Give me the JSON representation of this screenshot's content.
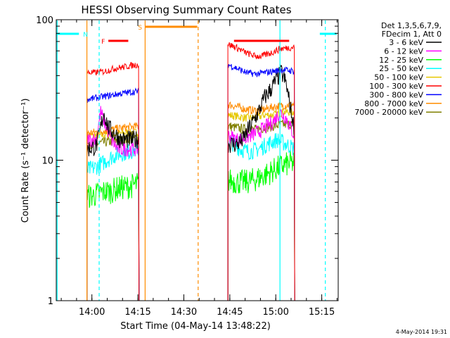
{
  "chart_data": {
    "type": "line",
    "title": "HESSI Observing Summary Count Rates",
    "xlabel": "Start Time (04-May-14 13:48:22)",
    "ylabel": "Count Rate (s⁻¹ detector⁻¹)",
    "x_domain_minutes": [
      0,
      92
    ],
    "x_unit": "minutes after start time",
    "ylim": [
      1,
      100
    ],
    "yscale": "log",
    "x_ticks": [
      {
        "label": "14:00",
        "min": 11.63
      },
      {
        "label": "14:15",
        "min": 26.63
      },
      {
        "label": "14:30",
        "min": 41.63
      },
      {
        "label": "14:45",
        "min": 56.63
      },
      {
        "label": "15:00",
        "min": 71.63
      },
      {
        "label": "15:15",
        "min": 86.63
      }
    ],
    "y_ticks": [
      {
        "label": "1",
        "value": 1
      },
      {
        "label": "10",
        "value": 10
      },
      {
        "label": "100",
        "value": 100
      }
    ],
    "legend": {
      "position": "right",
      "header": [
        "Det 1,3,5,6,7,9,",
        "FDecim 1, Att 0"
      ]
    },
    "series": [
      {
        "name": "3 - 6 keV",
        "color": "#000000"
      },
      {
        "name": "6 - 12 keV",
        "color": "#ff00ff"
      },
      {
        "name": "12 - 25 keV",
        "color": "#00ff00"
      },
      {
        "name": "25 - 50 keV",
        "color": "#00ffff"
      },
      {
        "name": "50 - 100 keV",
        "color": "#e6c800"
      },
      {
        "name": "100 - 300 keV",
        "color": "#ff0000"
      },
      {
        "name": "300 - 800 keV",
        "color": "#0000ff"
      },
      {
        "name": "800 - 7000 keV",
        "color": "#ff8c00"
      },
      {
        "name": "7000 - 20000 keV",
        "color": "#808000"
      }
    ],
    "segments": [
      {
        "start": 10.0,
        "end": 27.0,
        "levels": [
          [
            [
              10,
              12
            ],
            [
              13,
              12.5
            ],
            [
              14,
              15
            ],
            [
              15.5,
              22
            ],
            [
              17,
              17
            ],
            [
              19,
              15.5
            ],
            [
              21,
              14
            ],
            [
              24,
              14
            ],
            [
              27,
              14
            ]
          ],
          [
            [
              10,
              14
            ],
            [
              13,
              14
            ],
            [
              14.5,
              22
            ],
            [
              16,
              18
            ],
            [
              18,
              14
            ],
            [
              20,
              12
            ],
            [
              23,
              12
            ],
            [
              27,
              12
            ]
          ],
          [
            [
              10,
              5.5
            ],
            [
              12,
              5.6
            ],
            [
              14,
              5.8
            ],
            [
              16,
              6
            ],
            [
              18,
              6
            ],
            [
              20,
              6.3
            ],
            [
              24,
              6.5
            ],
            [
              27,
              6.8
            ]
          ],
          [
            [
              10,
              8.5
            ],
            [
              12,
              8.8
            ],
            [
              14,
              9.2
            ],
            [
              16,
              9.8
            ],
            [
              18,
              10.5
            ],
            [
              20,
              11
            ],
            [
              24,
              11.5
            ],
            [
              27,
              12
            ]
          ],
          [
            [
              10,
              15
            ],
            [
              14,
              15
            ],
            [
              18,
              15.3
            ],
            [
              22,
              15.6
            ],
            [
              27,
              15.8
            ]
          ],
          [
            [
              10,
              42
            ],
            [
              13,
              42
            ],
            [
              16,
              43
            ],
            [
              19,
              45
            ],
            [
              22,
              46
            ],
            [
              24,
              47
            ],
            [
              27,
              48
            ]
          ],
          [
            [
              10,
              27
            ],
            [
              14,
              28
            ],
            [
              18,
              29
            ],
            [
              22,
              30
            ],
            [
              27,
              31
            ]
          ],
          [
            [
              10,
              15.5
            ],
            [
              14,
              16
            ],
            [
              18,
              16.5
            ],
            [
              22,
              17
            ],
            [
              27,
              17.5
            ]
          ],
          [
            [
              10,
              13
            ],
            [
              14,
              13.2
            ],
            [
              18,
              13.6
            ],
            [
              22,
              14
            ],
            [
              27,
              14.5
            ]
          ]
        ]
      },
      {
        "start": 56.0,
        "end": 77.8,
        "levels": [
          [
            [
              56,
              13
            ],
            [
              59,
              13
            ],
            [
              61,
              14
            ],
            [
              63,
              17
            ],
            [
              66,
              22
            ],
            [
              68,
              28
            ],
            [
              70,
              32
            ],
            [
              72,
              38
            ],
            [
              73.5,
              42
            ],
            [
              75,
              35
            ],
            [
              77,
              20
            ],
            [
              77.8,
              16
            ]
          ],
          [
            [
              56,
              15
            ],
            [
              59,
              14
            ],
            [
              62,
              14.5
            ],
            [
              65,
              15.5
            ],
            [
              68,
              17
            ],
            [
              71,
              19
            ],
            [
              73,
              22
            ],
            [
              75,
              20
            ],
            [
              77,
              16
            ],
            [
              77.8,
              15
            ]
          ],
          [
            [
              56,
              7.2
            ],
            [
              59,
              7.0
            ],
            [
              62,
              7.0
            ],
            [
              65,
              7.3
            ],
            [
              68,
              7.8
            ],
            [
              71,
              8.5
            ],
            [
              74,
              9.2
            ],
            [
              77.8,
              9.6
            ]
          ],
          [
            [
              56,
              14
            ],
            [
              58,
              13
            ],
            [
              60,
              12
            ],
            [
              63,
              11.5
            ],
            [
              66,
              12
            ],
            [
              69,
              13
            ],
            [
              72,
              14
            ],
            [
              75,
              13
            ],
            [
              77.8,
              12
            ]
          ],
          [
            [
              56,
              21
            ],
            [
              59,
              20.5
            ],
            [
              62,
              20
            ],
            [
              65,
              20
            ],
            [
              68,
              21
            ],
            [
              71,
              21
            ],
            [
              74,
              22
            ],
            [
              77.8,
              22
            ]
          ],
          [
            [
              56,
              67
            ],
            [
              59,
              63
            ],
            [
              62,
              58
            ],
            [
              65,
              55
            ],
            [
              67,
              55
            ],
            [
              70,
              58
            ],
            [
              73,
              62
            ],
            [
              77.8,
              64
            ]
          ],
          [
            [
              56,
              48
            ],
            [
              59,
              45
            ],
            [
              62,
              42
            ],
            [
              65,
              41
            ],
            [
              68,
              42
            ],
            [
              71,
              43
            ],
            [
              74,
              44
            ],
            [
              77.8,
              43
            ]
          ],
          [
            [
              56,
              25
            ],
            [
              59,
              24
            ],
            [
              62,
              23
            ],
            [
              65,
              22.5
            ],
            [
              68,
              23
            ],
            [
              71,
              24
            ],
            [
              74,
              24.5
            ],
            [
              77.8,
              25
            ]
          ],
          [
            [
              56,
              17.5
            ],
            [
              59,
              17
            ],
            [
              62,
              16.5
            ],
            [
              65,
              16.5
            ],
            [
              68,
              17
            ],
            [
              71,
              17.5
            ],
            [
              74,
              18
            ],
            [
              77.8,
              18
            ]
          ]
        ]
      }
    ],
    "flags": [
      {
        "label": "N",
        "color": "#00ffff",
        "row": 0.0,
        "bars": [
          [
            0,
            7.4
          ],
          [
            86.0,
            91.5
          ]
        ]
      },
      {
        "label": "F",
        "color": "#ff0000",
        "row": 1.0,
        "bars": [
          [
            17.0,
            23.5
          ],
          [
            58.0,
            76.0
          ]
        ]
      },
      {
        "label": "S",
        "color": "#ff8c00",
        "row": -1.0,
        "bars": [
          [
            29.0,
            46.0
          ]
        ]
      }
    ],
    "vertical_lines": [
      {
        "min": 10.0,
        "style": "solid",
        "color": "#ff8c00"
      },
      {
        "min": 14.0,
        "style": "dashed",
        "color": "#00ffff"
      },
      {
        "min": 29.0,
        "style": "solid",
        "color": "#ff8c00"
      },
      {
        "min": 46.3,
        "style": "dashed",
        "color": "#ff8c00"
      },
      {
        "min": 73.0,
        "style": "solid",
        "color": "#00ffff"
      },
      {
        "min": 87.8,
        "style": "dashed",
        "color": "#00ffff"
      },
      {
        "min": 0.3,
        "style": "solid",
        "color": "#00ffff"
      }
    ]
  },
  "footer": {
    "date_stamp": "4-May-2014 19:31"
  }
}
